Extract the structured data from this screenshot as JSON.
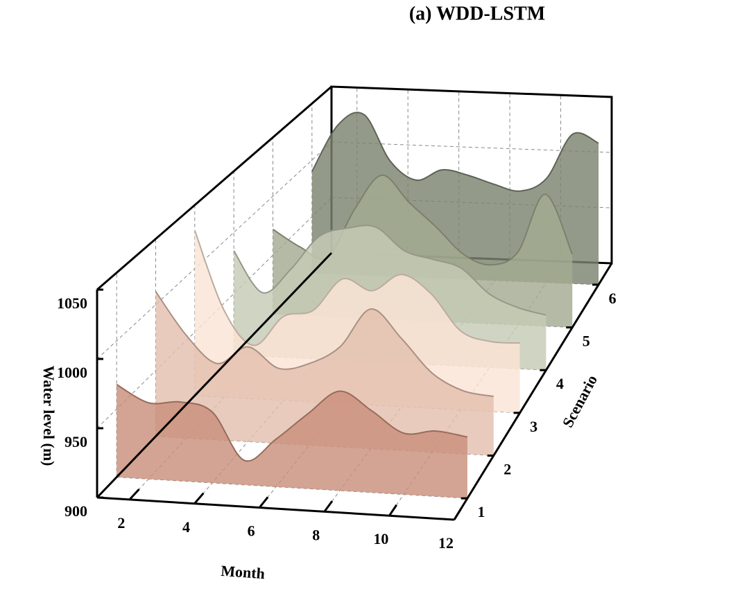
{
  "chart_data": {
    "type": "ridge3d",
    "title": "(a) WDD-LSTM",
    "xlabel": "Month",
    "ylabel": "Water level (m)",
    "zlabel": "Scenario",
    "x": [
      1,
      2,
      3,
      4,
      5,
      6,
      7,
      8,
      9,
      10,
      11,
      12
    ],
    "xlim": [
      1,
      12
    ],
    "xticks": [
      2,
      4,
      6,
      8,
      10,
      12
    ],
    "ylim": [
      900,
      1050
    ],
    "yticks": [
      900,
      950,
      1000,
      1050
    ],
    "zlim": [
      0.5,
      6.5
    ],
    "zticks": [
      1,
      2,
      3,
      4,
      5,
      6
    ],
    "grid": true,
    "series": [
      {
        "z": 1,
        "color": "#c98f7b",
        "values": [
          968,
          956,
          958,
          952,
          918,
          935,
          955,
          973,
          960,
          945,
          948,
          945
        ]
      },
      {
        "z": 2,
        "color": "#e3bfae",
        "values": [
          1010,
          978,
          958,
          972,
          957,
          962,
          976,
          1006,
          985,
          960,
          948,
          945
        ]
      },
      {
        "z": 3,
        "color": "#fbe4d5",
        "values": [
          1030,
          968,
          942,
          966,
          972,
          998,
          990,
          1004,
          990,
          962,
          955,
          955
        ]
      },
      {
        "z": 4,
        "color": "#c6cbb6",
        "values": [
          985,
          952,
          972,
          1000,
          1008,
          1010,
          992,
          986,
          980,
          960,
          950,
          945
        ]
      },
      {
        "z": 5,
        "color": "#a4ab91",
        "values": [
          972,
          958,
          950,
          992,
          1022,
          1000,
          980,
          958,
          950,
          962,
          1012,
          962
        ]
      },
      {
        "z": 6,
        "color": "#7c8470",
        "values": [
          990,
          1032,
          1042,
          1002,
          986,
          996,
          992,
          985,
          980,
          992,
          1032,
          1025
        ]
      }
    ]
  }
}
